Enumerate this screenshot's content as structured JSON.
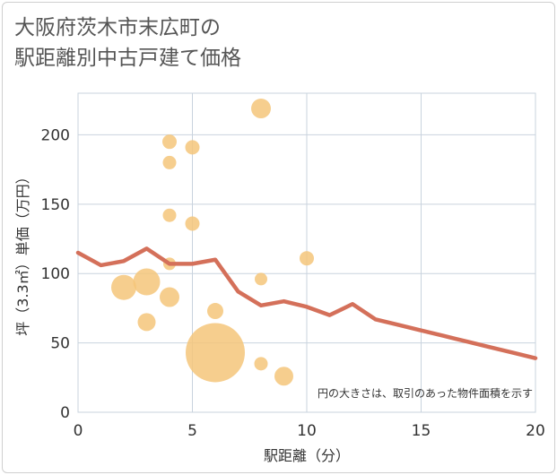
{
  "chart_data": {
    "type": "scatter",
    "title_lines": [
      "大阪府茨木市末広町の",
      "駅距離別中古戸建て価格"
    ],
    "xlabel": "駅距離（分）",
    "ylabel": "坪（3.3㎡）単価（万円）",
    "xlim": [
      0,
      20
    ],
    "ylim": [
      0,
      230
    ],
    "xticks": [
      0,
      5,
      10,
      15,
      20
    ],
    "yticks": [
      0,
      50,
      100,
      150,
      200
    ],
    "grid": true,
    "note": "円の大きさは、取引のあった物件面積を示す",
    "colors": {
      "bubble": "#f5c67a",
      "line": "#d4705a",
      "grid": "#c9d3de"
    },
    "bubbles": [
      {
        "x": 2,
        "y": 90,
        "size": 1.4
      },
      {
        "x": 3,
        "y": 94,
        "size": 1.5
      },
      {
        "x": 3,
        "y": 65,
        "size": 1.0
      },
      {
        "x": 4,
        "y": 195,
        "size": 0.8
      },
      {
        "x": 4,
        "y": 180,
        "size": 0.75
      },
      {
        "x": 4,
        "y": 142,
        "size": 0.75
      },
      {
        "x": 4,
        "y": 107,
        "size": 0.7
      },
      {
        "x": 4,
        "y": 83,
        "size": 1.1
      },
      {
        "x": 5,
        "y": 191,
        "size": 0.8
      },
      {
        "x": 5,
        "y": 136,
        "size": 0.8
      },
      {
        "x": 6,
        "y": 73,
        "size": 0.9
      },
      {
        "x": 6,
        "y": 43,
        "size": 3.3
      },
      {
        "x": 8,
        "y": 219,
        "size": 1.1
      },
      {
        "x": 8,
        "y": 96,
        "size": 0.7
      },
      {
        "x": 8,
        "y": 35,
        "size": 0.75
      },
      {
        "x": 9,
        "y": 26,
        "size": 1.05
      },
      {
        "x": 10,
        "y": 111,
        "size": 0.8
      }
    ],
    "line": {
      "x": [
        0,
        1,
        2,
        3,
        4,
        5,
        6,
        7,
        8,
        9,
        10,
        11,
        12,
        13,
        14,
        15,
        16,
        17,
        18,
        19,
        20
      ],
      "y": [
        115,
        106,
        109,
        118,
        107,
        107,
        110,
        87,
        77,
        80,
        76,
        70,
        78,
        67,
        63,
        59,
        55,
        51,
        47,
        43,
        39
      ]
    }
  }
}
